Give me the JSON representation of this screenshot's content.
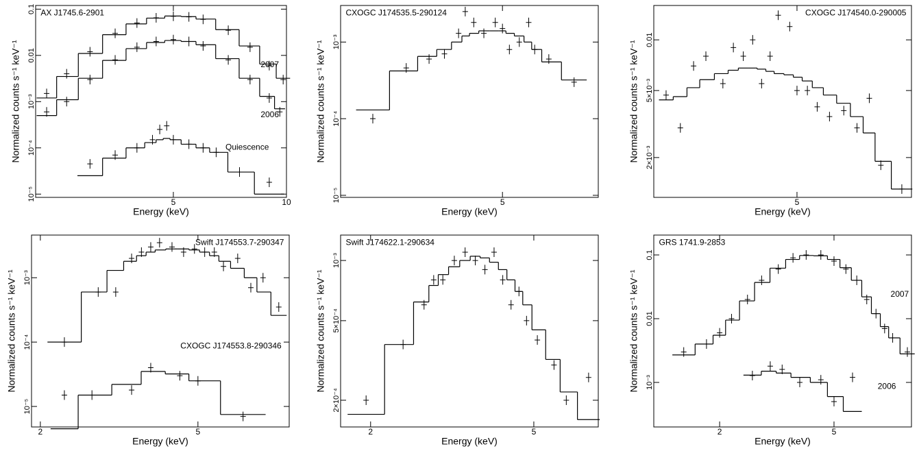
{
  "chart_data": [
    {
      "type": "scatter",
      "title": "AX J1745.6-2901",
      "x_label": "Energy (keV)",
      "y_label": "Normalized counts s⁻¹ keV⁻¹",
      "log_x": true,
      "log_y": true,
      "xlim": [
        2.15,
        10
      ],
      "xticks": [
        5,
        10
      ],
      "ylim": [
        8.5e-06,
        0.12
      ],
      "yticks": [
        0.1,
        0.01,
        {
          "value": 0.001,
          "label": "10⁻³"
        },
        {
          "value": 0.0001,
          "label": "10⁻⁴"
        },
        {
          "value": 1e-05,
          "label": "10⁻⁵"
        }
      ],
      "series": [
        {
          "name": "2007",
          "color": "#000000",
          "x": [
            2.3,
            2.6,
            3,
            3.5,
            4,
            4.5,
            5,
            5.5,
            6,
            7,
            8,
            9,
            9.8
          ],
          "values": [
            0.0015,
            0.004,
            0.012,
            0.03,
            0.05,
            0.065,
            0.07,
            0.068,
            0.06,
            0.035,
            0.015,
            0.006,
            0.003
          ],
          "model": [
            0.0012,
            0.0035,
            0.011,
            0.028,
            0.048,
            0.064,
            0.071,
            0.069,
            0.061,
            0.036,
            0.016,
            0.0065,
            0.0032
          ]
        },
        {
          "name": "2006",
          "color": "#000000",
          "x": [
            2.3,
            2.6,
            3,
            3.5,
            4,
            4.5,
            5,
            5.5,
            6,
            7,
            8,
            9,
            9.6
          ],
          "values": [
            0.0006,
            0.001,
            0.003,
            0.008,
            0.015,
            0.02,
            0.022,
            0.02,
            0.016,
            0.008,
            0.003,
            0.0012,
            0.0006
          ],
          "model": [
            0.0005,
            0.0011,
            0.0032,
            0.0078,
            0.014,
            0.019,
            0.021,
            0.02,
            0.017,
            0.0085,
            0.0032,
            0.0013,
            0.0007
          ]
        },
        {
          "name": "Quiescence",
          "color": "#000000",
          "x": [
            3.0,
            3.5,
            4,
            4.4,
            4.6,
            4.8,
            5,
            5.5,
            6,
            6.5,
            7.5,
            9
          ],
          "values": [
            4.5e-05,
            7e-05,
            0.0001,
            0.00015,
            0.00025,
            0.0003,
            0.00015,
            0.00012,
            0.0001,
            8e-05,
            3e-05,
            1.8e-05
          ],
          "model": [
            2.5e-05,
            6e-05,
            0.0001,
            0.00013,
            0.00015,
            0.00016,
            0.00015,
            0.00012,
            0.0001,
            8e-05,
            3e-05,
            1e-05
          ]
        }
      ]
    },
    {
      "type": "scatter",
      "title": "CXOGC J174535.5-290124",
      "x_label": "Energy (keV)",
      "y_label": "Normalized counts s⁻¹ keV⁻¹",
      "log_x": true,
      "log_y": true,
      "xlim": [
        2.0,
        8.6
      ],
      "xticks": [
        5
      ],
      "ylim": [
        9.4e-06,
        0.003
      ],
      "yticks": [
        {
          "value": 0.001,
          "label": "10⁻³"
        },
        {
          "value": 0.0001,
          "label": "10⁻⁴"
        },
        {
          "value": 1e-05,
          "label": "10⁻⁵"
        }
      ],
      "series": [
        {
          "color": "#000000",
          "x": [
            2.4,
            2.9,
            3.3,
            3.6,
            3.9,
            4.05,
            4.25,
            4.5,
            4.8,
            5.0,
            5.2,
            5.5,
            5.8,
            6.0,
            6.5,
            7.5
          ],
          "values": [
            0.0001,
            0.00046,
            0.0006,
            0.0007,
            0.0013,
            0.0025,
            0.0018,
            0.0013,
            0.0018,
            0.0015,
            0.0008,
            0.001,
            0.0018,
            0.0008,
            0.0006,
            0.0003
          ],
          "model": [
            0.00013,
            0.00042,
            0.00065,
            0.0008,
            0.001,
            0.0012,
            0.0013,
            0.0014,
            0.0014,
            0.0014,
            0.0013,
            0.0012,
            0.001,
            0.0008,
            0.00055,
            0.00032
          ]
        }
      ]
    },
    {
      "type": "scatter",
      "title": "CXOGC J174540.0-290005",
      "x_label": "Energy (keV)",
      "y_label": "Normalized counts s⁻¹ keV⁻¹",
      "log_x": true,
      "log_y": true,
      "xlim": [
        2.24,
        9.5
      ],
      "xticks": [
        5
      ],
      "ylim": [
        0.00116,
        0.016
      ],
      "yticks": [
        0.01,
        {
          "value": 0.005,
          "label": "5×10⁻³"
        },
        {
          "value": 0.002,
          "label": "2×10⁻³"
        }
      ],
      "series": [
        {
          "color": "#000000",
          "x": [
            2.4,
            2.6,
            2.8,
            3.0,
            3.3,
            3.5,
            3.7,
            3.9,
            4.1,
            4.3,
            4.5,
            4.8,
            5.0,
            5.3,
            5.6,
            6.0,
            6.5,
            7.0,
            7.5,
            8.0,
            9.0
          ],
          "values": [
            0.0047,
            0.003,
            0.007,
            0.008,
            0.0055,
            0.009,
            0.008,
            0.01,
            0.0055,
            0.008,
            0.014,
            0.012,
            0.005,
            0.005,
            0.004,
            0.0035,
            0.0038,
            0.003,
            0.0045,
            0.0018,
            0.0013
          ],
          "model": [
            0.0044,
            0.0046,
            0.0052,
            0.0058,
            0.0063,
            0.0066,
            0.0068,
            0.0068,
            0.0067,
            0.0065,
            0.0063,
            0.0062,
            0.006,
            0.0057,
            0.0052,
            0.0047,
            0.0042,
            0.0035,
            0.0028,
            0.0019,
            0.0013
          ]
        }
      ]
    },
    {
      "type": "scatter",
      "title": "Swift J174553.7-290347",
      "x_label": "Energy (keV)",
      "y_label": "Normalized counts s⁻¹ keV⁻¹",
      "log_x": true,
      "log_y": true,
      "xlim": [
        1.9,
        8.5
      ],
      "xticks": [
        2,
        5
      ],
      "ylim": [
        4.8e-06,
        0.0046
      ],
      "yticks": [
        {
          "value": 0.001,
          "label": "10⁻³"
        },
        {
          "value": 0.0001,
          "label": "10⁻⁴"
        },
        {
          "value": 1e-05,
          "label": "10⁻⁵"
        }
      ],
      "series": [
        {
          "color": "#000000",
          "x": [
            2.3,
            2.8,
            3.1,
            3.4,
            3.6,
            3.8,
            4.0,
            4.3,
            4.6,
            4.9,
            5.2,
            5.5,
            5.8,
            6.3,
            6.8,
            7.3,
            8.0
          ],
          "values": [
            0.0001,
            0.0006,
            0.0006,
            0.002,
            0.0025,
            0.003,
            0.0035,
            0.003,
            0.0025,
            0.0028,
            0.0025,
            0.0025,
            0.0015,
            0.002,
            0.0007,
            0.001,
            0.00035
          ],
          "model": [
            0.0001,
            0.0006,
            0.0013,
            0.0018,
            0.0022,
            0.0025,
            0.0027,
            0.0028,
            0.0028,
            0.0027,
            0.0025,
            0.0022,
            0.0018,
            0.0014,
            0.001,
            0.0006,
            0.00026
          ]
        },
        {
          "name": "CXOGC J174553.8-290346",
          "color": "#000000",
          "x": [
            2.3,
            2.7,
            3.4,
            3.8,
            4.5,
            5.0,
            6.5
          ],
          "values": [
            1.5e-05,
            1.5e-05,
            1.8e-05,
            4e-05,
            3e-05,
            2.5e-05,
            7e-06
          ],
          "model": [
            4.5e-06,
            1.5e-05,
            2.2e-05,
            3.5e-05,
            3.2e-05,
            2.5e-05,
            7.5e-06
          ]
        }
      ]
    },
    {
      "type": "scatter",
      "title": "Swift J174622.1-290634",
      "x_label": "Energy (keV)",
      "y_label": "Normalized counts s⁻¹ keV⁻¹",
      "log_x": true,
      "log_y": true,
      "xlim": [
        1.69,
        7.18
      ],
      "xticks": [
        2,
        5
      ],
      "ylim": [
        0.000147,
        0.00134
      ],
      "yticks": [
        {
          "value": 0.001,
          "label": "10⁻³"
        },
        {
          "value": 0.0005,
          "label": "5×10⁻⁴"
        },
        {
          "value": 0.0002,
          "label": "2×10⁻⁴"
        }
      ],
      "series": [
        {
          "color": "#000000",
          "x": [
            1.95,
            2.4,
            2.7,
            2.85,
            3.0,
            3.2,
            3.4,
            3.6,
            3.8,
            4.0,
            4.2,
            4.4,
            4.6,
            4.8,
            5.1,
            5.6,
            6.0,
            6.8
          ],
          "values": [
            0.0002,
            0.00038,
            0.0006,
            0.0008,
            0.0008,
            0.001,
            0.0011,
            0.001,
            0.0009,
            0.0011,
            0.0008,
            0.0006,
            0.0007,
            0.0005,
            0.0004,
            0.0003,
            0.0002,
            0.00026
          ],
          "model": [
            0.00017,
            0.00038,
            0.00062,
            0.00075,
            0.00085,
            0.00093,
            0.001,
            0.00105,
            0.00103,
            0.00098,
            0.0009,
            0.0008,
            0.0007,
            0.0006,
            0.00045,
            0.00032,
            0.00022,
            0.00016
          ]
        }
      ]
    },
    {
      "type": "scatter",
      "title": "GRS 1741.9-2853",
      "x_label": "Energy (keV)",
      "y_label": "Normalized counts s⁻¹ keV⁻¹",
      "log_x": true,
      "log_y": true,
      "xlim": [
        1.18,
        9.3
      ],
      "xticks": [
        2,
        5
      ],
      "ylim": [
        0.0002,
        0.205
      ],
      "yticks": [
        0.1,
        0.01,
        {
          "value": 0.001,
          "label": "10⁻³"
        }
      ],
      "series": [
        {
          "name": "2007",
          "color": "#000000",
          "x": [
            1.5,
            1.8,
            2.0,
            2.2,
            2.5,
            2.8,
            3.2,
            3.6,
            4.0,
            4.5,
            5.0,
            5.5,
            6.0,
            6.5,
            7.0,
            7.5,
            8.0,
            9.0
          ],
          "values": [
            0.003,
            0.004,
            0.006,
            0.01,
            0.02,
            0.04,
            0.06,
            0.09,
            0.1,
            0.1,
            0.08,
            0.06,
            0.04,
            0.02,
            0.012,
            0.007,
            0.005,
            0.003
          ],
          "model": [
            0.0027,
            0.004,
            0.0055,
            0.0095,
            0.019,
            0.037,
            0.062,
            0.085,
            0.098,
            0.097,
            0.085,
            0.063,
            0.04,
            0.022,
            0.012,
            0.0075,
            0.005,
            0.0028
          ]
        },
        {
          "name": "2006",
          "color": "#000000",
          "x": [
            2.6,
            3.0,
            3.3,
            3.8,
            4.5,
            5.0,
            5.8
          ],
          "values": [
            0.00128,
            0.0018,
            0.0016,
            0.001,
            0.0011,
            0.0005,
            0.0012
          ],
          "model": [
            0.0013,
            0.0015,
            0.0014,
            0.0012,
            0.001,
            0.0006,
            0.00035
          ]
        }
      ]
    }
  ]
}
